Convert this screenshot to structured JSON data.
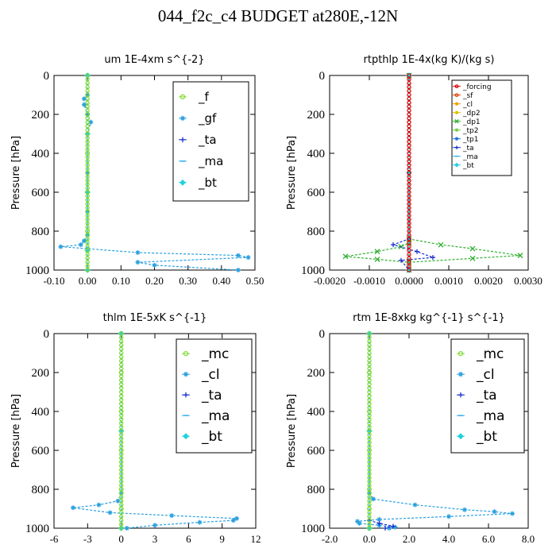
{
  "figure_title": "044_f2c_c4  BUDGET at280E,-12N",
  "chart_data": [
    {
      "type": "line",
      "title": "um   1E-4xm  s^{-2}",
      "xlabel": "",
      "ylabel": "Pressure [hPa]",
      "xlim": [
        -0.1,
        0.5
      ],
      "ylim": [
        1000,
        0
      ],
      "y_inverted": true,
      "x_ticks": [
        "-0.10",
        "0.00",
        "0.10",
        "0.20",
        "0.30",
        "0.40",
        "0.50"
      ],
      "x_tick_values": [
        -0.1,
        0.0,
        0.1,
        0.2,
        0.3,
        0.4,
        0.5
      ],
      "y_ticks": [
        "0",
        "200",
        "400",
        "600",
        "800",
        "1000"
      ],
      "y_tick_values": [
        0,
        200,
        400,
        600,
        800,
        1000
      ],
      "legend": {
        "placement": "top-right",
        "size": "large"
      },
      "series": [
        {
          "name": "_f",
          "color": "#7fd830",
          "marker": "circle-open",
          "points": [
            [
              0.0,
              0
            ],
            [
              0.0,
              200
            ],
            [
              0.0,
              400
            ],
            [
              0.0,
              600
            ],
            [
              0.0,
              800
            ],
            [
              0.0,
              900
            ],
            [
              0.0,
              1000
            ]
          ]
        },
        {
          "name": "_gf",
          "color": "#2aa0e0",
          "marker": "star",
          "points": [
            [
              0.0,
              0
            ],
            [
              0.0,
              100
            ],
            [
              -0.01,
              120
            ],
            [
              -0.01,
              150
            ],
            [
              0.0,
              200
            ],
            [
              0.01,
              240
            ],
            [
              0.0,
              300
            ],
            [
              0.0,
              500
            ],
            [
              0.0,
              700
            ],
            [
              0.0,
              820
            ],
            [
              -0.01,
              850
            ],
            [
              -0.02,
              870
            ],
            [
              -0.08,
              880
            ],
            [
              0.0,
              890
            ],
            [
              0.15,
              910
            ],
            [
              0.45,
              925
            ],
            [
              0.48,
              935
            ],
            [
              0.15,
              960
            ],
            [
              0.2,
              975
            ],
            [
              0.45,
              1000
            ]
          ]
        },
        {
          "name": "_ta",
          "color": "#1a2fd0",
          "marker": "plus",
          "points": [
            [
              0.0,
              0
            ],
            [
              0.0,
              300
            ],
            [
              0.0,
              600
            ],
            [
              0.0,
              900
            ],
            [
              0.0,
              1000
            ]
          ]
        },
        {
          "name": "_ma",
          "color": "#3ab0f0",
          "marker": "dash",
          "points": [
            [
              0.0,
              0
            ],
            [
              0.0,
              300
            ],
            [
              0.0,
              600
            ],
            [
              0.0,
              900
            ],
            [
              0.0,
              1000
            ]
          ]
        },
        {
          "name": "_bt",
          "color": "#20d0e0",
          "marker": "diamond",
          "points": [
            [
              0.0,
              0
            ],
            [
              0.0,
              300
            ],
            [
              0.0,
              600
            ],
            [
              0.0,
              900
            ],
            [
              0.0,
              1000
            ]
          ]
        }
      ]
    },
    {
      "type": "line",
      "title": "rtpthlp   1E-4x(kg K)/(kg s)",
      "xlabel": "",
      "ylabel": "Pressure [hPa]",
      "xlim": [
        -0.002,
        0.003
      ],
      "ylim": [
        1000,
        0
      ],
      "y_inverted": true,
      "x_ticks": [
        "-0.0020",
        "-0.0010",
        "0.0000",
        "0.0010",
        "0.0020",
        "0.0030"
      ],
      "x_tick_values": [
        -0.002,
        -0.001,
        0.0,
        0.001,
        0.002,
        0.003
      ],
      "y_ticks": [
        "0",
        "200",
        "400",
        "600",
        "800",
        "1000"
      ],
      "y_tick_values": [
        0,
        200,
        400,
        600,
        800,
        1000
      ],
      "legend": {
        "placement": "top-right",
        "size": "small"
      },
      "series": [
        {
          "name": "_forcing",
          "color": "#e00000",
          "marker": "circle-open",
          "points": [
            [
              0.0,
              0
            ],
            [
              0.0,
              500
            ],
            [
              0.0,
              1000
            ]
          ]
        },
        {
          "name": "_sf",
          "color": "#e04000",
          "marker": "circle-open",
          "points": [
            [
              0.0,
              0
            ],
            [
              0.0,
              500
            ],
            [
              0.0,
              1000
            ]
          ]
        },
        {
          "name": "_cl",
          "color": "#f0a000",
          "marker": "star",
          "points": [
            [
              0.0,
              0
            ],
            [
              0.0,
              500
            ],
            [
              0.0,
              1000
            ]
          ]
        },
        {
          "name": "_dp2",
          "color": "#e0c000",
          "marker": "star",
          "points": [
            [
              0.0,
              0
            ],
            [
              0.0,
              500
            ],
            [
              0.0,
              1000
            ]
          ]
        },
        {
          "name": "_dp1",
          "color": "#2fb030",
          "marker": "cross",
          "points": [
            [
              0.0,
              0
            ],
            [
              0.0,
              840
            ],
            [
              0.0008,
              870
            ],
            [
              0.0016,
              890
            ],
            [
              0.0028,
              925
            ],
            [
              0.0016,
              940
            ],
            [
              0.0,
              960
            ],
            [
              -0.0008,
              945
            ],
            [
              -0.0016,
              930
            ],
            [
              -0.0008,
              905
            ],
            [
              -0.0002,
              880
            ],
            [
              0.0,
              860
            ],
            [
              0.0,
              1000
            ]
          ]
        },
        {
          "name": "_tp2",
          "color": "#70d040",
          "marker": "star",
          "points": [
            [
              0.0,
              0
            ],
            [
              0.0,
              500
            ],
            [
              0.0,
              1000
            ]
          ]
        },
        {
          "name": "_tp1",
          "color": "#2070e0",
          "marker": "star",
          "points": [
            [
              0.0,
              0
            ],
            [
              0.0,
              500
            ],
            [
              0.0,
              1000
            ]
          ]
        },
        {
          "name": "_ta",
          "color": "#1a2fd0",
          "marker": "plus",
          "points": [
            [
              0.0,
              0
            ],
            [
              0.0,
              840
            ],
            [
              -0.0004,
              870
            ],
            [
              0.0002,
              905
            ],
            [
              0.0006,
              935
            ],
            [
              -0.0002,
              950
            ],
            [
              0.0,
              1000
            ]
          ]
        },
        {
          "name": "_ma",
          "color": "#3ab0f0",
          "marker": "dash",
          "points": [
            [
              0.0,
              0
            ],
            [
              0.0,
              500
            ],
            [
              0.0,
              1000
            ]
          ]
        },
        {
          "name": "_bt",
          "color": "#20d0e0",
          "marker": "diamond",
          "points": [
            [
              0.0,
              0
            ],
            [
              0.0,
              500
            ],
            [
              0.0,
              1000
            ]
          ]
        }
      ]
    },
    {
      "type": "line",
      "title": "thlm   1E-5xK  s^{-1}",
      "xlabel": "",
      "ylabel": "Pressure [hPa]",
      "xlim": [
        -6,
        12
      ],
      "ylim": [
        1000,
        0
      ],
      "y_inverted": true,
      "x_ticks": [
        "-6",
        "-3",
        "0",
        "3",
        "6",
        "9",
        "12"
      ],
      "x_tick_values": [
        -6,
        -3,
        0,
        3,
        6,
        9,
        12
      ],
      "y_ticks": [
        "0",
        "200",
        "400",
        "600",
        "800",
        "1000"
      ],
      "y_tick_values": [
        0,
        200,
        400,
        600,
        800,
        1000
      ],
      "legend": {
        "placement": "top-right",
        "size": "large"
      },
      "series": [
        {
          "name": "_mc",
          "color": "#7fd830",
          "marker": "circle-open",
          "points": [
            [
              0,
              0
            ],
            [
              0,
              200
            ],
            [
              0,
              400
            ],
            [
              0,
              600
            ],
            [
              0,
              800
            ],
            [
              0,
              900
            ],
            [
              0,
              1000
            ]
          ]
        },
        {
          "name": "_cl",
          "color": "#2aa0e0",
          "marker": "star",
          "points": [
            [
              0,
              0
            ],
            [
              0,
              500
            ],
            [
              0,
              820
            ],
            [
              -0.3,
              860
            ],
            [
              -2,
              880
            ],
            [
              -4.3,
              895
            ],
            [
              -1,
              920
            ],
            [
              4.5,
              935
            ],
            [
              10.3,
              950
            ],
            [
              10,
              960
            ],
            [
              7,
              970
            ],
            [
              3,
              985
            ],
            [
              0.5,
              1000
            ]
          ]
        },
        {
          "name": "_ta",
          "color": "#1a2fd0",
          "marker": "plus",
          "points": [
            [
              0,
              0
            ],
            [
              0,
              500
            ],
            [
              0,
              1000
            ]
          ]
        },
        {
          "name": "_ma",
          "color": "#3ab0f0",
          "marker": "dash",
          "points": [
            [
              0,
              0
            ],
            [
              0,
              500
            ],
            [
              0,
              1000
            ]
          ]
        },
        {
          "name": "_bt",
          "color": "#20d0e0",
          "marker": "diamond",
          "points": [
            [
              0,
              0
            ],
            [
              0,
              500
            ],
            [
              0,
              1000
            ]
          ]
        }
      ]
    },
    {
      "type": "line",
      "title": "rtm   1E-8xkg  kg^{-1} s^{-1}",
      "xlabel": "",
      "ylabel": "Pressure [hPa]",
      "xlim": [
        -2.0,
        8.0
      ],
      "ylim": [
        1000,
        0
      ],
      "y_inverted": true,
      "x_ticks": [
        "-2.0",
        "0.0",
        "2.0",
        "4.0",
        "6.0",
        "8.0"
      ],
      "x_tick_values": [
        -2.0,
        0.0,
        2.0,
        4.0,
        6.0,
        8.0
      ],
      "y_ticks": [
        "0",
        "200",
        "400",
        "600",
        "800",
        "1000"
      ],
      "y_tick_values": [
        0,
        200,
        400,
        600,
        800,
        1000
      ],
      "legend": {
        "placement": "top-right",
        "size": "large"
      },
      "series": [
        {
          "name": "_mc",
          "color": "#7fd830",
          "marker": "circle-open",
          "points": [
            [
              0,
              0
            ],
            [
              0,
              200
            ],
            [
              0,
              400
            ],
            [
              0,
              600
            ],
            [
              0,
              800
            ],
            [
              0,
              900
            ],
            [
              0,
              1000
            ]
          ]
        },
        {
          "name": "_cl",
          "color": "#2aa0e0",
          "marker": "star",
          "points": [
            [
              0,
              0
            ],
            [
              0,
              500
            ],
            [
              0,
              820
            ],
            [
              0.2,
              850
            ],
            [
              2.3,
              880
            ],
            [
              4.8,
              905
            ],
            [
              6.3,
              915
            ],
            [
              7.2,
              925
            ],
            [
              4,
              940
            ],
            [
              0.5,
              955
            ],
            [
              -0.6,
              965
            ],
            [
              -0.5,
              975
            ],
            [
              0.5,
              985
            ],
            [
              1.3,
              995
            ],
            [
              1.0,
              1000
            ]
          ]
        },
        {
          "name": "_ta",
          "color": "#1a2fd0",
          "marker": "plus",
          "points": [
            [
              0,
              0
            ],
            [
              0,
              500
            ],
            [
              0,
              960
            ],
            [
              0.5,
              975
            ],
            [
              1.2,
              990
            ],
            [
              0.8,
              1000
            ]
          ]
        },
        {
          "name": "_ma",
          "color": "#3ab0f0",
          "marker": "dash",
          "points": [
            [
              0,
              0
            ],
            [
              0,
              500
            ],
            [
              0,
              1000
            ]
          ]
        },
        {
          "name": "_bt",
          "color": "#20d0e0",
          "marker": "diamond",
          "points": [
            [
              0,
              0
            ],
            [
              0,
              500
            ],
            [
              0,
              1000
            ]
          ]
        }
      ]
    }
  ]
}
